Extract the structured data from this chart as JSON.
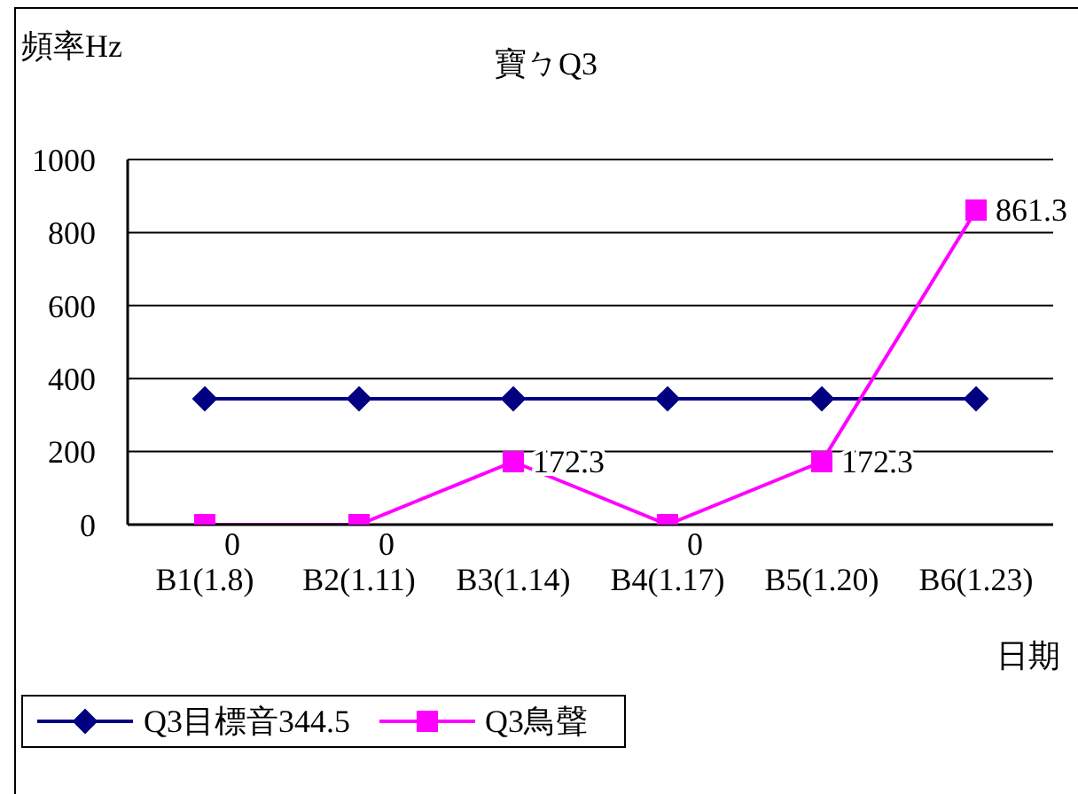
{
  "chart_data": {
    "type": "line",
    "title": "寶ㄅQ3",
    "xlabel": "日期",
    "ylabel": "頻率Hz",
    "categories": [
      "B1(1.8)",
      "B2(1.11)",
      "B3(1.14)",
      "B4(1.17)",
      "B5(1.20)",
      "B6(1.23)"
    ],
    "series": [
      {
        "name": "Q3目標音344.5",
        "color": "#000080",
        "marker": "diamond",
        "values": [
          344.5,
          344.5,
          344.5,
          344.5,
          344.5,
          344.5
        ]
      },
      {
        "name": "Q3鳥聲",
        "color": "#ff00ff",
        "marker": "square",
        "values": [
          0,
          0,
          172.3,
          0,
          172.3,
          861.3
        ],
        "value_labels": [
          "0",
          "0",
          "172.3",
          "0",
          "172.3",
          "861.3"
        ]
      }
    ],
    "ylim": [
      0,
      1000
    ],
    "yticks": [
      0,
      200,
      400,
      600,
      800,
      1000
    ],
    "grid": "y",
    "legend": "bottom left",
    "line_style": "solid"
  }
}
